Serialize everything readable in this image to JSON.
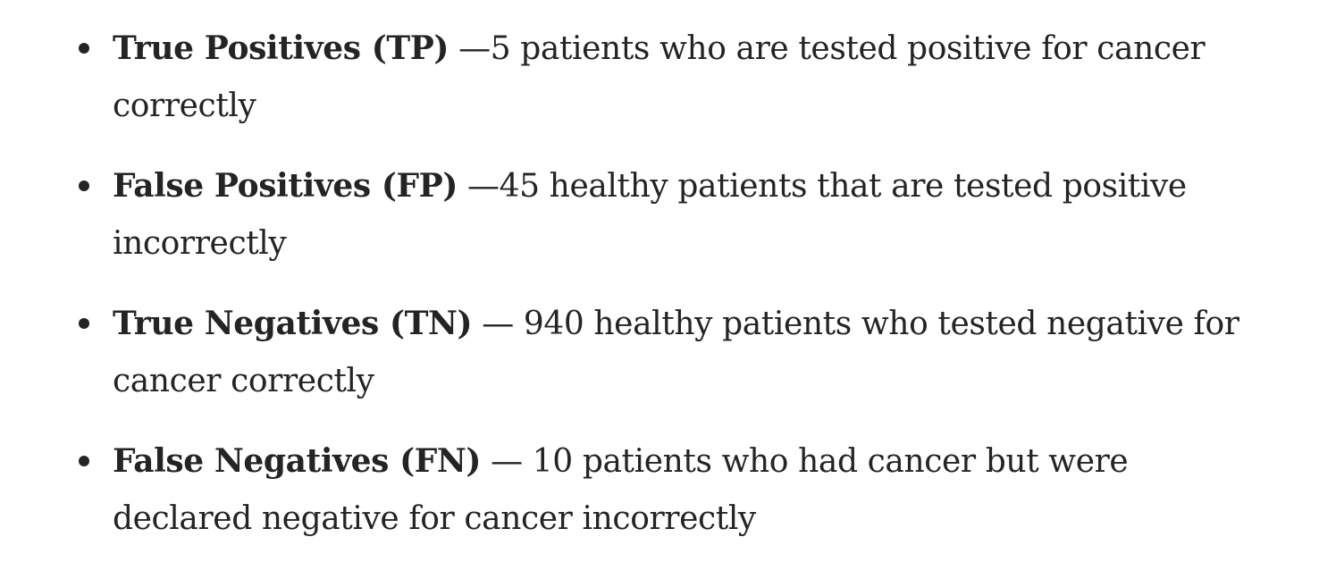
{
  "items": [
    {
      "term": "True Positives (TP)",
      "description": " —5 patients who are tested positive for cancer correctly"
    },
    {
      "term": "False Positives (FP)",
      "description": " —45 healthy patients that are tested positive incorrectly"
    },
    {
      "term": "True Negatives (TN)",
      "description": " — 940 healthy patients who tested negative for cancer correctly"
    },
    {
      "term": "False Negatives (FN)",
      "description": " — 10 patients who had cancer but were declared negative for cancer incorrectly"
    }
  ]
}
